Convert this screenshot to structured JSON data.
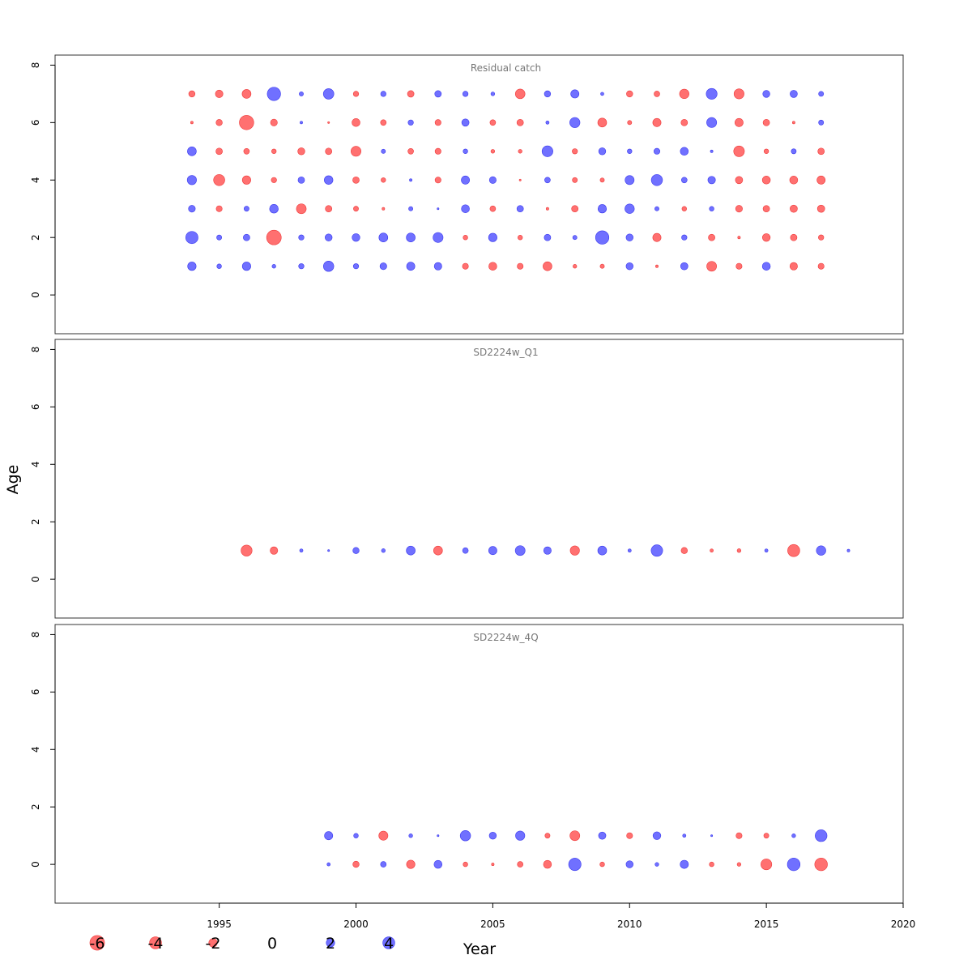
{
  "chart_data": {
    "type": "scatter",
    "subtype": "bubble",
    "xlabel": "Year",
    "ylabel": "Age",
    "xlim": [
      1989,
      2020
    ],
    "ylim": [
      -1.35,
      8.35
    ],
    "x_ticks": [
      1995,
      2000,
      2005,
      2010,
      2015,
      2020
    ],
    "y_ticks": [
      0,
      2,
      4,
      6,
      8
    ],
    "colors": {
      "positive": "#7070ff",
      "negative": "#ff7070",
      "positive_edge": "#3a3aee",
      "negative_edge": "#ee3a3a"
    },
    "legend": {
      "placement": "bottom-left",
      "values": [
        -6,
        -4,
        -2,
        0,
        2,
        4
      ],
      "labels": [
        "-6",
        "-4",
        "-2",
        "0",
        "2",
        "4"
      ]
    },
    "years": [
      1994,
      1995,
      1996,
      1997,
      1998,
      1999,
      2000,
      2001,
      2002,
      2003,
      2004,
      2005,
      2006,
      2007,
      2008,
      2009,
      2010,
      2011,
      2012,
      2013,
      2014,
      2015,
      2016,
      2017
    ],
    "panels": [
      {
        "title": "Residual catch",
        "ages": [
          1,
          2,
          3,
          4,
          5,
          6,
          7
        ],
        "residuals": [
          [
            2.0,
            0.6,
            2.0,
            0.4,
            0.8,
            3.0,
            0.8,
            1.3,
            1.9,
            1.6,
            -1.0,
            -1.8,
            -1.0,
            -2.2,
            -0.4,
            -0.5,
            1.4,
            -0.2,
            1.5,
            -2.7,
            -1.0,
            1.8,
            -1.6,
            -1.0
          ],
          [
            4.2,
            0.7,
            1.2,
            -6.0,
            0.8,
            1.4,
            1.7,
            2.2,
            2.2,
            2.8,
            -0.6,
            2.0,
            -0.6,
            1.2,
            0.5,
            5.0,
            1.4,
            -1.9,
            0.8,
            -1.2,
            -0.2,
            -1.7,
            -1.2,
            -0.8
          ],
          [
            1.3,
            -1.0,
            0.7,
            2.1,
            -2.7,
            -1.2,
            -0.7,
            -0.2,
            0.5,
            0.1,
            1.8,
            -0.9,
            1.2,
            -0.2,
            -1.2,
            2.0,
            2.5,
            0.5,
            -0.6,
            0.6,
            -1.3,
            -1.2,
            -1.5,
            -1.5
          ],
          [
            2.4,
            -3.5,
            -2.0,
            -0.8,
            1.2,
            2.1,
            -1.2,
            -0.6,
            0.2,
            -1.0,
            1.9,
            1.3,
            -0.1,
            0.9,
            -0.7,
            -0.5,
            2.3,
            3.5,
            0.9,
            1.6,
            -1.5,
            -1.8,
            -1.8,
            -1.9
          ],
          [
            2.2,
            -1.2,
            -0.9,
            -0.6,
            -1.4,
            -1.2,
            -2.8,
            0.5,
            -0.9,
            -1.0,
            0.6,
            -0.4,
            -0.4,
            3.3,
            -0.8,
            1.4,
            0.6,
            1.0,
            1.8,
            0.2,
            -3.2,
            -0.6,
            0.7,
            -1.2
          ],
          [
            -0.2,
            -1.1,
            -5.8,
            -1.3,
            0.2,
            -0.1,
            -1.8,
            -0.9,
            0.8,
            -1.0,
            1.5,
            -0.9,
            -1.2,
            0.3,
            2.9,
            -2.2,
            -0.5,
            -1.9,
            -1.2,
            2.8,
            -1.9,
            -1.2,
            -0.2,
            0.7
          ],
          [
            -1.1,
            -1.6,
            -2.2,
            5.0,
            0.5,
            3.1,
            -0.8,
            0.8,
            -1.2,
            1.2,
            0.8,
            0.4,
            -2.6,
            1.1,
            1.9,
            0.3,
            -1.1,
            -0.9,
            -2.5,
            3.3,
            -2.8,
            1.4,
            1.5,
            0.7
          ]
        ]
      },
      {
        "title": "SD2224w_Q1",
        "ages": [
          1
        ],
        "points": [
          {
            "year": 1996,
            "residual": -3.4
          },
          {
            "year": 1997,
            "residual": -1.6
          },
          {
            "year": 1998,
            "residual": 0.3
          },
          {
            "year": 1999,
            "residual": 0.1
          },
          {
            "year": 2000,
            "residual": 1.1
          },
          {
            "year": 2001,
            "residual": 0.4
          },
          {
            "year": 2002,
            "residual": 2.2
          },
          {
            "year": 2003,
            "residual": -2.2
          },
          {
            "year": 2004,
            "residual": 0.9
          },
          {
            "year": 2005,
            "residual": 1.9
          },
          {
            "year": 2006,
            "residual": 2.7
          },
          {
            "year": 2007,
            "residual": 1.6
          },
          {
            "year": 2008,
            "residual": -2.4
          },
          {
            "year": 2009,
            "residual": 2.2
          },
          {
            "year": 2010,
            "residual": 0.3
          },
          {
            "year": 2011,
            "residual": 3.7
          },
          {
            "year": 2012,
            "residual": -1.1
          },
          {
            "year": 2013,
            "residual": -0.3
          },
          {
            "year": 2014,
            "residual": -0.4
          },
          {
            "year": 2015,
            "residual": 0.3
          },
          {
            "year": 2016,
            "residual": -4.1
          },
          {
            "year": 2017,
            "residual": 2.5
          },
          {
            "year": 2018,
            "residual": 0.2
          }
        ]
      },
      {
        "title": "SD2224w_4Q",
        "ages": [
          0,
          1
        ],
        "years": [
          1999,
          2000,
          2001,
          2002,
          2003,
          2004,
          2005,
          2006,
          2007,
          2008,
          2009,
          2010,
          2011,
          2012,
          2013,
          2014,
          2015,
          2016,
          2017
        ],
        "residuals": [
          [
            0.3,
            -1.1,
            0.9,
            -2.0,
            1.8,
            -0.6,
            -0.2,
            -0.9,
            -1.8,
            4.3,
            -0.6,
            1.4,
            0.4,
            1.9,
            -0.6,
            -0.4,
            -3.3,
            4.5,
            -4.5
          ],
          [
            1.9,
            0.6,
            -2.3,
            0.4,
            0.1,
            3.0,
            1.4,
            2.4,
            -0.7,
            -2.7,
            1.5,
            -1.0,
            1.7,
            0.3,
            0.1,
            -1.0,
            -0.7,
            0.4,
            3.9
          ]
        ]
      }
    ]
  }
}
